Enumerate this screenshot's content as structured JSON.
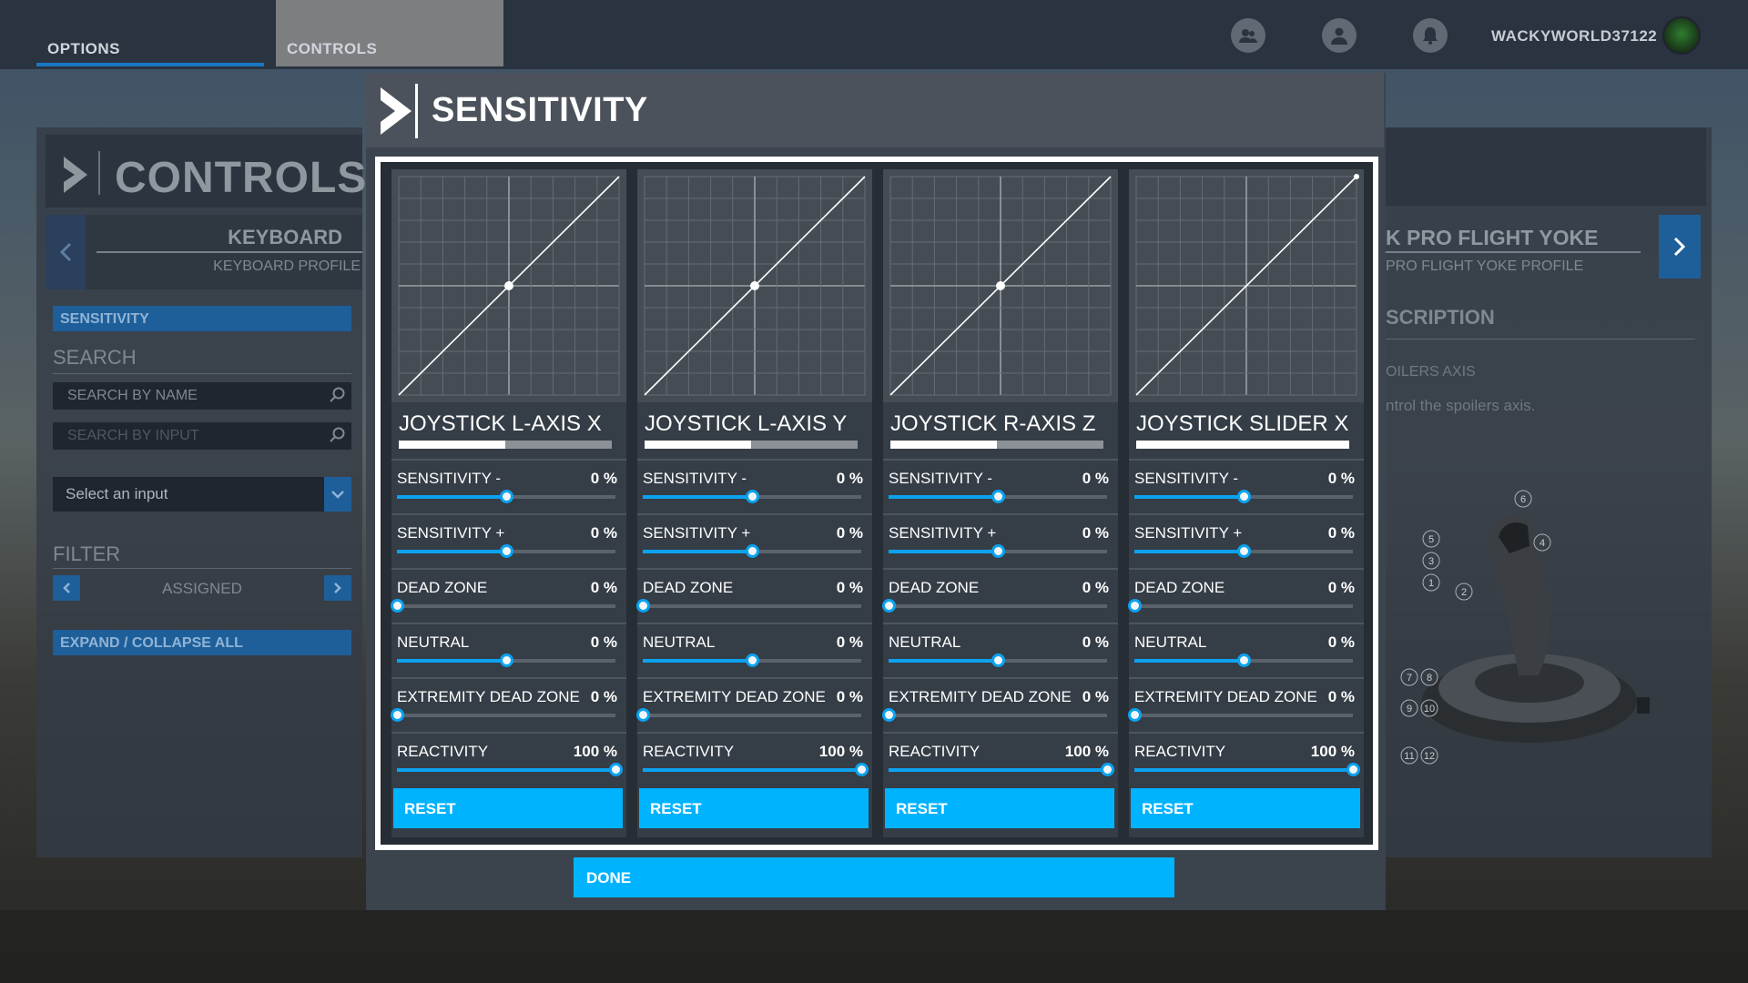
{
  "topbar": {
    "tabs": [
      {
        "label": "OPTIONS"
      },
      {
        "label": "CONTROLS"
      }
    ],
    "username": "WACKYWORLD37122",
    "icons": [
      "friends-icon",
      "profile-icon",
      "notifications-icon"
    ]
  },
  "left_panel": {
    "title": "CONTROLS",
    "device": "KEYBOARD",
    "profile": "KEYBOARD PROFILE",
    "sensitivity_label": "SENSITIVITY",
    "search_heading": "SEARCH",
    "search_name_placeholder": "SEARCH BY NAME",
    "search_input_placeholder": "SEARCH BY INPUT",
    "select_input": "Select an input",
    "filter_heading": "FILTER",
    "filter_value": "ASSIGNED",
    "expand_label": "EXPAND / COLLAPSE ALL"
  },
  "right_panel": {
    "device": "K PRO FLIGHT YOKE",
    "profile": "PRO FLIGHT YOKE PROFILE",
    "description_heading": "SCRIPTION",
    "axis_name": "OILERS AXIS",
    "axis_description": "ntrol the spoilers axis.",
    "callouts": [
      "6",
      "5",
      "4",
      "3",
      "1",
      "2",
      "7",
      "8",
      "9",
      "10",
      "11",
      "12"
    ]
  },
  "modal": {
    "title": "SENSITIVITY",
    "reset_label": "RESET",
    "done_label": "DONE",
    "row_labels": [
      "SENSITIVITY -",
      "SENSITIVITY +",
      "DEAD ZONE",
      "NEUTRAL",
      "EXTREMITY DEAD ZONE",
      "REACTIVITY"
    ],
    "accent_color": "#00b3ff",
    "axes": [
      {
        "name": "JOYSTICK L-AXIS X",
        "input_level": 0.5,
        "curve_point": [
          0,
          0
        ],
        "values": [
          "0 %",
          "0 %",
          "0 %",
          "0 %",
          "0 %",
          "100 %"
        ],
        "slider_levels": [
          0.5,
          0.5,
          0,
          0.5,
          0,
          1
        ]
      },
      {
        "name": "JOYSTICK L-AXIS Y",
        "input_level": 0.5,
        "curve_point": [
          0,
          0
        ],
        "values": [
          "0 %",
          "0 %",
          "0 %",
          "0 %",
          "0 %",
          "100 %"
        ],
        "slider_levels": [
          0.5,
          0.5,
          0,
          0.5,
          0,
          1
        ]
      },
      {
        "name": "JOYSTICK R-AXIS Z",
        "input_level": 0.5,
        "curve_point": [
          0,
          0
        ],
        "values": [
          "0 %",
          "0 %",
          "0 %",
          "0 %",
          "0 %",
          "100 %"
        ],
        "slider_levels": [
          0.5,
          0.5,
          0,
          0.5,
          0,
          1
        ]
      },
      {
        "name": "JOYSTICK SLIDER X",
        "input_level": 1.0,
        "curve_point": [
          1,
          1
        ],
        "values": [
          "0 %",
          "0 %",
          "0 %",
          "0 %",
          "0 %",
          "100 %"
        ],
        "slider_levels": [
          0.5,
          0.5,
          0,
          0.5,
          0,
          1
        ]
      }
    ]
  }
}
